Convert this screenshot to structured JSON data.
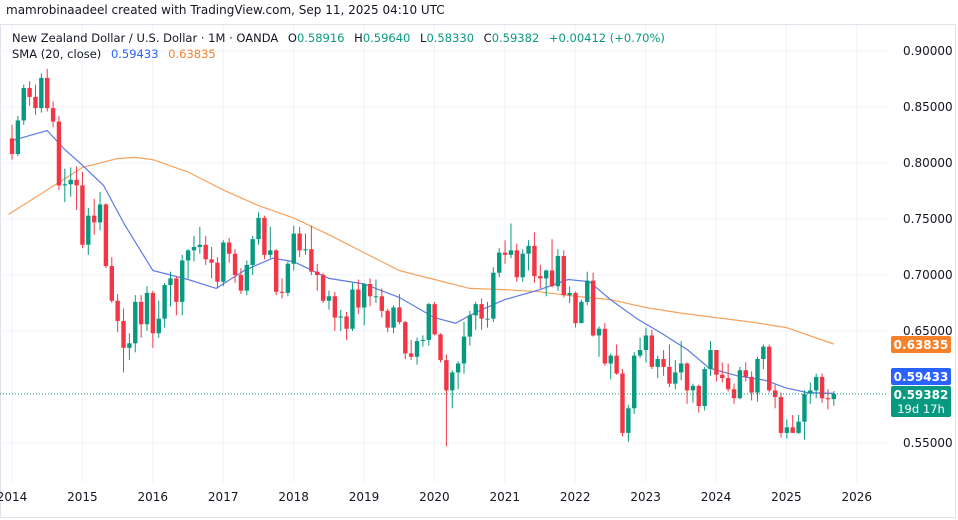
{
  "attribution": "mamrobinaadeel created with TradingView.com, Sep 11, 2025 04:10 UTC",
  "legend": {
    "symbol": "New Zealand Dollar / U.S. Dollar · 1M · OANDA",
    "o_label": "O",
    "o": "0.58916",
    "h_label": "H",
    "h": "0.59640",
    "l_label": "L",
    "l": "0.58330",
    "c_label": "C",
    "c": "0.59382",
    "change": "+0.00412 (+0.70%)",
    "indicator": "SMA (20, close)",
    "sma_fast": "0.59433",
    "sma_slow": "0.63835"
  },
  "price_labels": {
    "sma_slow": "0.63835",
    "sma_fast": "0.59433",
    "last": "0.59382",
    "countdown": "19d 17h"
  },
  "colors": {
    "up": "#089981",
    "down": "#f23645",
    "sma_fast": "#5b7be6",
    "sma_slow": "#f5a25d",
    "label_fast": "#2962ff",
    "label_slow": "#f7812a",
    "label_last": "#089981"
  },
  "chart_data": {
    "type": "candlestick",
    "interval": "1M",
    "y_ticks": [
      "0.90000",
      "0.85000",
      "0.80000",
      "0.75000",
      "0.70000",
      "0.65000",
      "0.55000"
    ],
    "x_ticks": [
      "2014",
      "2015",
      "2016",
      "2017",
      "2018",
      "2019",
      "2020",
      "2021",
      "2022",
      "2023",
      "2024",
      "2025",
      "2026"
    ],
    "ylim": [
      0.535,
      0.905
    ],
    "grid": true,
    "candles_columns": [
      "month",
      "open",
      "high",
      "low",
      "close"
    ],
    "candles": [
      [
        "2014-01",
        0.822,
        0.834,
        0.803,
        0.808
      ],
      [
        "2014-02",
        0.808,
        0.842,
        0.806,
        0.838
      ],
      [
        "2014-03",
        0.838,
        0.87,
        0.834,
        0.867
      ],
      [
        "2014-04",
        0.867,
        0.873,
        0.851,
        0.859
      ],
      [
        "2014-05",
        0.859,
        0.87,
        0.843,
        0.849
      ],
      [
        "2014-06",
        0.849,
        0.88,
        0.845,
        0.876
      ],
      [
        "2014-07",
        0.876,
        0.884,
        0.846,
        0.849
      ],
      [
        "2014-08",
        0.849,
        0.855,
        0.832,
        0.837
      ],
      [
        "2014-09",
        0.837,
        0.842,
        0.776,
        0.78
      ],
      [
        "2014-10",
        0.78,
        0.795,
        0.765,
        0.781
      ],
      [
        "2014-11",
        0.781,
        0.796,
        0.77,
        0.785
      ],
      [
        "2014-12",
        0.785,
        0.797,
        0.758,
        0.78
      ],
      [
        "2015-01",
        0.78,
        0.792,
        0.724,
        0.727
      ],
      [
        "2015-02",
        0.727,
        0.76,
        0.718,
        0.753
      ],
      [
        "2015-03",
        0.753,
        0.768,
        0.736,
        0.747
      ],
      [
        "2015-04",
        0.747,
        0.774,
        0.74,
        0.763
      ],
      [
        "2015-05",
        0.763,
        0.764,
        0.706,
        0.708
      ],
      [
        "2015-06",
        0.708,
        0.716,
        0.675,
        0.677
      ],
      [
        "2015-07",
        0.677,
        0.683,
        0.649,
        0.659
      ],
      [
        "2015-08",
        0.659,
        0.67,
        0.613,
        0.635
      ],
      [
        "2015-09",
        0.635,
        0.648,
        0.624,
        0.639
      ],
      [
        "2015-10",
        0.639,
        0.682,
        0.631,
        0.676
      ],
      [
        "2015-11",
        0.676,
        0.682,
        0.644,
        0.656
      ],
      [
        "2015-12",
        0.656,
        0.69,
        0.65,
        0.684
      ],
      [
        "2016-01",
        0.684,
        0.686,
        0.635,
        0.648
      ],
      [
        "2016-02",
        0.648,
        0.677,
        0.644,
        0.661
      ],
      [
        "2016-03",
        0.661,
        0.693,
        0.653,
        0.691
      ],
      [
        "2016-04",
        0.691,
        0.703,
        0.672,
        0.697
      ],
      [
        "2016-05",
        0.697,
        0.699,
        0.664,
        0.676
      ],
      [
        "2016-06",
        0.676,
        0.718,
        0.664,
        0.713
      ],
      [
        "2016-07",
        0.713,
        0.723,
        0.697,
        0.722
      ],
      [
        "2016-08",
        0.722,
        0.735,
        0.712,
        0.725
      ],
      [
        "2016-09",
        0.725,
        0.743,
        0.719,
        0.727
      ],
      [
        "2016-10",
        0.727,
        0.735,
        0.709,
        0.714
      ],
      [
        "2016-11",
        0.714,
        0.725,
        0.697,
        0.711
      ],
      [
        "2016-12",
        0.711,
        0.716,
        0.688,
        0.694
      ],
      [
        "2017-01",
        0.694,
        0.731,
        0.69,
        0.729
      ],
      [
        "2017-02",
        0.729,
        0.733,
        0.711,
        0.719
      ],
      [
        "2017-03",
        0.719,
        0.723,
        0.693,
        0.7
      ],
      [
        "2017-04",
        0.7,
        0.706,
        0.683,
        0.686
      ],
      [
        "2017-05",
        0.686,
        0.713,
        0.682,
        0.709
      ],
      [
        "2017-06",
        0.709,
        0.735,
        0.7,
        0.732
      ],
      [
        "2017-07",
        0.732,
        0.756,
        0.727,
        0.751
      ],
      [
        "2017-08",
        0.751,
        0.753,
        0.714,
        0.718
      ],
      [
        "2017-09",
        0.718,
        0.743,
        0.715,
        0.722
      ],
      [
        "2017-10",
        0.722,
        0.723,
        0.682,
        0.685
      ],
      [
        "2017-11",
        0.685,
        0.697,
        0.679,
        0.684
      ],
      [
        "2017-12",
        0.684,
        0.712,
        0.681,
        0.71
      ],
      [
        "2018-01",
        0.71,
        0.744,
        0.704,
        0.737
      ],
      [
        "2018-02",
        0.737,
        0.743,
        0.716,
        0.722
      ],
      [
        "2018-03",
        0.722,
        0.737,
        0.718,
        0.723
      ],
      [
        "2018-04",
        0.723,
        0.744,
        0.7,
        0.703
      ],
      [
        "2018-05",
        0.703,
        0.71,
        0.686,
        0.7
      ],
      [
        "2018-06",
        0.7,
        0.702,
        0.675,
        0.677
      ],
      [
        "2018-07",
        0.677,
        0.686,
        0.669,
        0.681
      ],
      [
        "2018-08",
        0.681,
        0.685,
        0.65,
        0.662
      ],
      [
        "2018-09",
        0.662,
        0.669,
        0.65,
        0.663
      ],
      [
        "2018-10",
        0.663,
        0.667,
        0.642,
        0.652
      ],
      [
        "2018-11",
        0.652,
        0.693,
        0.65,
        0.687
      ],
      [
        "2018-12",
        0.687,
        0.696,
        0.665,
        0.671
      ],
      [
        "2019-01",
        0.671,
        0.693,
        0.655,
        0.692
      ],
      [
        "2019-02",
        0.692,
        0.697,
        0.672,
        0.681
      ],
      [
        "2019-03",
        0.681,
        0.696,
        0.675,
        0.681
      ],
      [
        "2019-04",
        0.681,
        0.688,
        0.662,
        0.668
      ],
      [
        "2019-05",
        0.668,
        0.67,
        0.649,
        0.653
      ],
      [
        "2019-06",
        0.653,
        0.673,
        0.648,
        0.671
      ],
      [
        "2019-07",
        0.671,
        0.683,
        0.656,
        0.658
      ],
      [
        "2019-08",
        0.658,
        0.659,
        0.625,
        0.63
      ],
      [
        "2019-09",
        0.63,
        0.642,
        0.624,
        0.627
      ],
      [
        "2019-10",
        0.627,
        0.644,
        0.62,
        0.641
      ],
      [
        "2019-11",
        0.641,
        0.646,
        0.636,
        0.642
      ],
      [
        "2019-12",
        0.642,
        0.675,
        0.637,
        0.674
      ],
      [
        "2020-01",
        0.674,
        0.676,
        0.646,
        0.647
      ],
      [
        "2020-02",
        0.647,
        0.648,
        0.622,
        0.624
      ],
      [
        "2020-03",
        0.624,
        0.629,
        0.547,
        0.597
      ],
      [
        "2020-04",
        0.597,
        0.615,
        0.581,
        0.613
      ],
      [
        "2020-05",
        0.613,
        0.623,
        0.598,
        0.621
      ],
      [
        "2020-06",
        0.621,
        0.658,
        0.612,
        0.645
      ],
      [
        "2020-07",
        0.645,
        0.668,
        0.637,
        0.664
      ],
      [
        "2020-08",
        0.664,
        0.676,
        0.651,
        0.674
      ],
      [
        "2020-09",
        0.674,
        0.679,
        0.651,
        0.661
      ],
      [
        "2020-10",
        0.661,
        0.676,
        0.653,
        0.661
      ],
      [
        "2020-11",
        0.661,
        0.707,
        0.658,
        0.702
      ],
      [
        "2020-12",
        0.702,
        0.724,
        0.698,
        0.72
      ],
      [
        "2021-01",
        0.72,
        0.731,
        0.71,
        0.718
      ],
      [
        "2021-02",
        0.718,
        0.746,
        0.715,
        0.722
      ],
      [
        "2021-03",
        0.722,
        0.728,
        0.694,
        0.698
      ],
      [
        "2021-04",
        0.698,
        0.723,
        0.694,
        0.719
      ],
      [
        "2021-05",
        0.719,
        0.731,
        0.704,
        0.726
      ],
      [
        "2021-06",
        0.726,
        0.738,
        0.693,
        0.699
      ],
      [
        "2021-07",
        0.699,
        0.709,
        0.688,
        0.697
      ],
      [
        "2021-08",
        0.697,
        0.705,
        0.681,
        0.704
      ],
      [
        "2021-09",
        0.704,
        0.732,
        0.689,
        0.69
      ],
      [
        "2021-10",
        0.69,
        0.723,
        0.686,
        0.717
      ],
      [
        "2021-11",
        0.717,
        0.722,
        0.68,
        0.682
      ],
      [
        "2021-12",
        0.682,
        0.69,
        0.675,
        0.684
      ],
      [
        "2022-01",
        0.684,
        0.685,
        0.653,
        0.657
      ],
      [
        "2022-02",
        0.657,
        0.678,
        0.657,
        0.676
      ],
      [
        "2022-03",
        0.676,
        0.703,
        0.673,
        0.695
      ],
      [
        "2022-04",
        0.695,
        0.702,
        0.645,
        0.646
      ],
      [
        "2022-05",
        0.646,
        0.654,
        0.627,
        0.652
      ],
      [
        "2022-06",
        0.652,
        0.657,
        0.619,
        0.621
      ],
      [
        "2022-07",
        0.621,
        0.63,
        0.607,
        0.628
      ],
      [
        "2022-08",
        0.628,
        0.638,
        0.611,
        0.612
      ],
      [
        "2022-09",
        0.612,
        0.616,
        0.556,
        0.559
      ],
      [
        "2022-10",
        0.559,
        0.584,
        0.551,
        0.581
      ],
      [
        "2022-11",
        0.581,
        0.631,
        0.576,
        0.628
      ],
      [
        "2022-12",
        0.628,
        0.644,
        0.626,
        0.633
      ],
      [
        "2023-01",
        0.633,
        0.653,
        0.622,
        0.646
      ],
      [
        "2023-02",
        0.646,
        0.651,
        0.616,
        0.618
      ],
      [
        "2023-03",
        0.618,
        0.628,
        0.608,
        0.625
      ],
      [
        "2023-04",
        0.625,
        0.633,
        0.61,
        0.618
      ],
      [
        "2023-05",
        0.618,
        0.638,
        0.6,
        0.603
      ],
      [
        "2023-06",
        0.603,
        0.624,
        0.598,
        0.613
      ],
      [
        "2023-07",
        0.613,
        0.641,
        0.606,
        0.621
      ],
      [
        "2023-08",
        0.621,
        0.622,
        0.585,
        0.597
      ],
      [
        "2023-09",
        0.597,
        0.603,
        0.586,
        0.601
      ],
      [
        "2023-10",
        0.601,
        0.602,
        0.577,
        0.583
      ],
      [
        "2023-11",
        0.583,
        0.618,
        0.579,
        0.616
      ],
      [
        "2023-12",
        0.616,
        0.641,
        0.61,
        0.633
      ],
      [
        "2024-01",
        0.633,
        0.633,
        0.605,
        0.611
      ],
      [
        "2024-02",
        0.611,
        0.622,
        0.604,
        0.608
      ],
      [
        "2024-03",
        0.608,
        0.621,
        0.596,
        0.598
      ],
      [
        "2024-04",
        0.598,
        0.603,
        0.585,
        0.59
      ],
      [
        "2024-05",
        0.59,
        0.618,
        0.589,
        0.615
      ],
      [
        "2024-06",
        0.615,
        0.622,
        0.605,
        0.609
      ],
      [
        "2024-07",
        0.609,
        0.614,
        0.588,
        0.595
      ],
      [
        "2024-08",
        0.595,
        0.627,
        0.587,
        0.625
      ],
      [
        "2024-09",
        0.625,
        0.638,
        0.616,
        0.636
      ],
      [
        "2024-10",
        0.636,
        0.638,
        0.595,
        0.597
      ],
      [
        "2024-11",
        0.597,
        0.602,
        0.581,
        0.591
      ],
      [
        "2024-12",
        0.591,
        0.595,
        0.555,
        0.559
      ],
      [
        "2025-01",
        0.559,
        0.571,
        0.554,
        0.564
      ],
      [
        "2025-02",
        0.564,
        0.575,
        0.559,
        0.559
      ],
      [
        "2025-03",
        0.559,
        0.575,
        0.558,
        0.569
      ],
      [
        "2025-04",
        0.569,
        0.597,
        0.553,
        0.594
      ],
      [
        "2025-05",
        0.594,
        0.604,
        0.585,
        0.597
      ],
      [
        "2025-06",
        0.597,
        0.612,
        0.59,
        0.609
      ],
      [
        "2025-07",
        0.609,
        0.612,
        0.586,
        0.59
      ],
      [
        "2025-08",
        0.59,
        0.598,
        0.58,
        0.589
      ],
      [
        "2025-09",
        0.58916,
        0.5964,
        0.5833,
        0.59382
      ]
    ],
    "sma_fast_points": [
      [
        2014.0,
        0.82
      ],
      [
        2014.5,
        0.829
      ],
      [
        2014.75,
        0.812
      ],
      [
        2015.0,
        0.798
      ],
      [
        2015.3,
        0.78
      ],
      [
        2015.6,
        0.745
      ],
      [
        2016.0,
        0.704
      ],
      [
        2016.5,
        0.696
      ],
      [
        2016.9,
        0.688
      ],
      [
        2017.3,
        0.704
      ],
      [
        2017.7,
        0.715
      ],
      [
        2018.0,
        0.712
      ],
      [
        2018.5,
        0.697
      ],
      [
        2019.0,
        0.692
      ],
      [
        2019.5,
        0.68
      ],
      [
        2020.0,
        0.662
      ],
      [
        2020.3,
        0.657
      ],
      [
        2020.6,
        0.667
      ],
      [
        2021.0,
        0.678
      ],
      [
        2021.5,
        0.687
      ],
      [
        2021.9,
        0.696
      ],
      [
        2022.2,
        0.694
      ],
      [
        2022.5,
        0.678
      ],
      [
        2022.9,
        0.66
      ],
      [
        2023.2,
        0.649
      ],
      [
        2023.6,
        0.633
      ],
      [
        2023.9,
        0.617
      ],
      [
        2024.3,
        0.61
      ],
      [
        2024.7,
        0.606
      ],
      [
        2025.0,
        0.599
      ],
      [
        2025.3,
        0.595
      ],
      [
        2025.67,
        0.59433
      ]
    ],
    "sma_slow_points": [
      [
        2013.95,
        0.754
      ],
      [
        2014.5,
        0.776
      ],
      [
        2015.0,
        0.796
      ],
      [
        2015.5,
        0.804
      ],
      [
        2015.75,
        0.805
      ],
      [
        2016.0,
        0.803
      ],
      [
        2016.5,
        0.792
      ],
      [
        2017.0,
        0.776
      ],
      [
        2017.5,
        0.762
      ],
      [
        2018.0,
        0.751
      ],
      [
        2018.5,
        0.736
      ],
      [
        2019.0,
        0.72
      ],
      [
        2019.5,
        0.704
      ],
      [
        2020.0,
        0.696
      ],
      [
        2020.5,
        0.688
      ],
      [
        2021.0,
        0.687
      ],
      [
        2021.5,
        0.685
      ],
      [
        2022.0,
        0.681
      ],
      [
        2022.5,
        0.678
      ],
      [
        2023.0,
        0.671
      ],
      [
        2023.5,
        0.666
      ],
      [
        2024.0,
        0.662
      ],
      [
        2024.5,
        0.658
      ],
      [
        2025.0,
        0.653
      ],
      [
        2025.67,
        0.63835
      ]
    ]
  }
}
